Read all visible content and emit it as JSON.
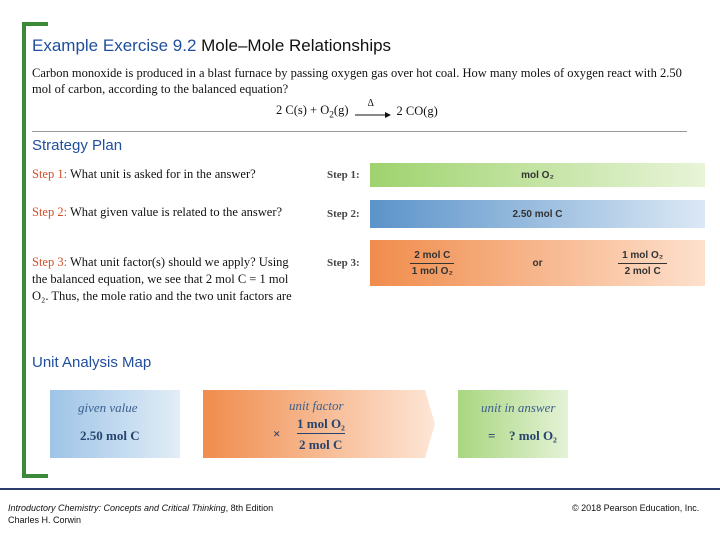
{
  "title": {
    "prefix": "Example Exercise 9.2",
    "rest": " Mole–Mole Relationships"
  },
  "problem": "Carbon monoxide is produced in a blast furnace by passing oxygen gas over hot coal. How many moles of oxygen react with 2.50 mol of carbon, according to the balanced equation?",
  "equation": {
    "left": "2 C(s) + O",
    "left_sub": "2",
    "left_end": "(g)",
    "delta": "Δ",
    "right": "2 CO(g)"
  },
  "strategy": {
    "heading": "Strategy Plan",
    "steps": [
      {
        "label": "Step 1:",
        "text": " What unit is asked for in the answer?",
        "tag": "Step 1:",
        "bar": "mol O₂"
      },
      {
        "label": "Step 2:",
        "text": " What given value is related to the answer?",
        "tag": "Step 2:",
        "bar": "2.50 mol C"
      },
      {
        "label": "Step 3:",
        "text": " What unit factor(s) should we apply? Using the balanced equation, we see that 2 mol C = 1 mol O₂. Thus, the mole ratio and the two unit factors are",
        "tag": "Step 3:",
        "factor1_num": "2 mol C",
        "factor1_den": "1 mol O₂",
        "or": "or",
        "factor2_num": "1 mol O₂",
        "factor2_den": "2 mol C"
      }
    ]
  },
  "map": {
    "heading": "Unit Analysis Map",
    "given_label": "given value",
    "given_value": "2.50 mol C",
    "times": "×",
    "factor_label": "unit factor",
    "factor_num": "1 mol O₂",
    "factor_den": "2 mol C",
    "answer_label": "unit in answer",
    "equals": "=",
    "answer_value": "? mol O₂"
  },
  "colors": {
    "accent": "#1f4e9c",
    "step_label": "#d0502a",
    "bracket": "#3a8a3a"
  },
  "footer": {
    "book_italic": "Introductory Chemistry: Concepts and Critical Thinking",
    "book_rest": ", 8th Edition",
    "author": "Charles H. Corwin",
    "copyright": "© 2018 Pearson Education, Inc."
  }
}
